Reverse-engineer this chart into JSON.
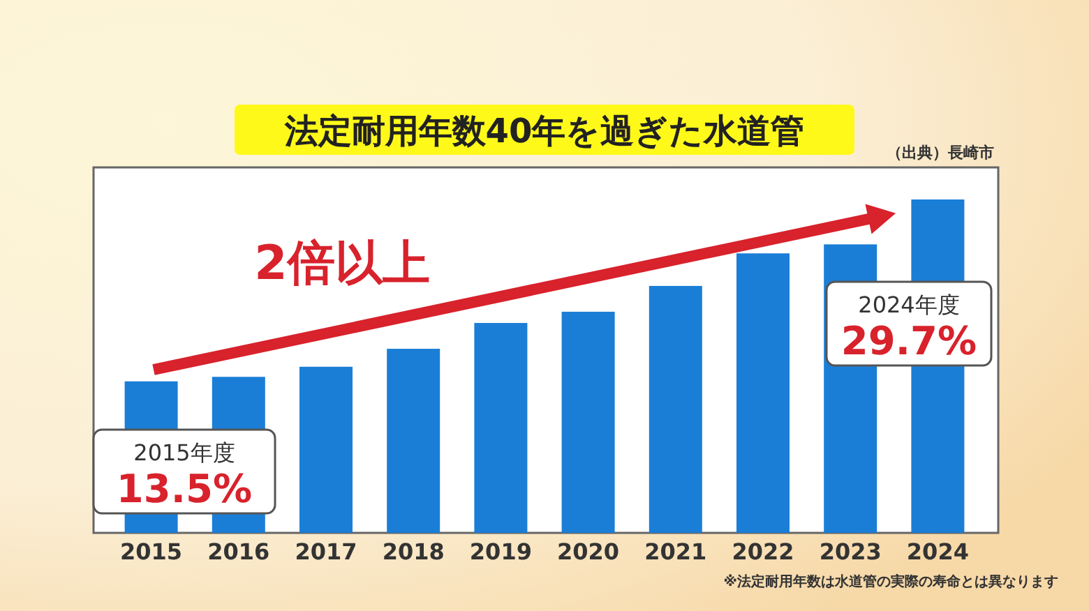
{
  "chart_data": {
    "type": "bar",
    "title": "法定耐用年数40年を過ぎた水道管",
    "categories": [
      "2015",
      "2016",
      "2017",
      "2018",
      "2019",
      "2020",
      "2021",
      "2022",
      "2023",
      "2024"
    ],
    "values": [
      13.5,
      13.9,
      14.8,
      16.4,
      18.7,
      19.7,
      22.0,
      24.9,
      25.7,
      29.7
    ],
    "color": "#1b7ed6",
    "value_labels": [
      "13.5%",
      null,
      null,
      null,
      null,
      null,
      null,
      null,
      null,
      "29.7%"
    ],
    "annotations": [
      "2倍以上",
      "2015年度",
      "2024年度",
      "（出典）長崎市",
      "※法定耐用年数は水道管の実際の寿命とは異なります"
    ]
  }
}
